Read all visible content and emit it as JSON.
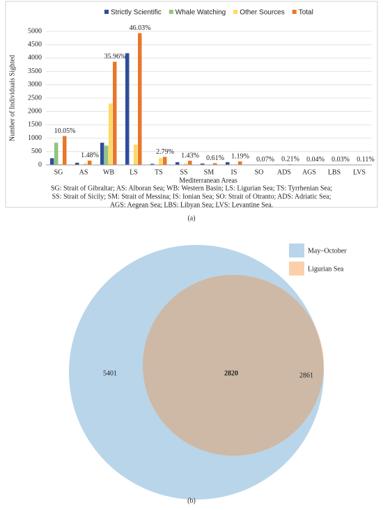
{
  "chart_data": [
    {
      "type": "bar",
      "y_label": "Number of Individuals Sighted",
      "x_label": "Mediterranean Areas",
      "categories": [
        "SG",
        "AS",
        "WB",
        "LS",
        "TS",
        "SS",
        "SM",
        "IS",
        "SO",
        "ADS",
        "AGS",
        "LBS",
        "LVS"
      ],
      "series": [
        {
          "name": "Strictly Scientific",
          "color": "#2f4d9c",
          "values": [
            250,
            80,
            830,
            4180,
            40,
            100,
            50,
            100,
            5,
            15,
            3,
            2,
            8
          ]
        },
        {
          "name": "Whale Watching",
          "color": "#93c47d",
          "values": [
            830,
            10,
            720,
            10,
            10,
            5,
            5,
            5,
            0,
            0,
            0,
            0,
            0
          ]
        },
        {
          "name": "Other Sources",
          "color": "#ffd966",
          "values": [
            30,
            60,
            2300,
            760,
            250,
            50,
            15,
            25,
            3,
            8,
            1,
            1,
            4
          ]
        },
        {
          "name": "Total",
          "color": "#e8772b",
          "values": [
            1080,
            160,
            3860,
            4930,
            300,
            155,
            65,
            130,
            8,
            23,
            4,
            3,
            12
          ]
        }
      ],
      "percent_labels": [
        "10.05%",
        "1.48%",
        "35.96%",
        "46.03%",
        "2.79%",
        "1.43%",
        "0.61%",
        "1.19%",
        "0.07%",
        "0.21%",
        "0.04%",
        "0.03%",
        "0.11%"
      ],
      "ylim": [
        0,
        5000
      ],
      "yticks": [
        0,
        500,
        1000,
        1500,
        2000,
        2500,
        3000,
        3500,
        4000,
        4500,
        5000
      ],
      "grid": true,
      "legend": "top",
      "caption": [
        "SG: Strait of Gibraltar; AS: Alboran Sea; WB: Western Basin; LS: Ligurian Sea; TS: Tyrrhenian Sea;",
        "SS: Strait of Sicily; SM: Strait of Messina; IS: Ionian Sea; SO: Strait of Otranto; ADS: Adriatic Sea;",
        "AGS: Aegean Sea; LBS: Libyan Sea; LVS: Levantine Sea."
      ],
      "panel": "(a)"
    },
    {
      "type": "venn",
      "sets": [
        {
          "name": "May–October",
          "color": "#b9d5e9"
        },
        {
          "name": "Ligurian Sea",
          "color": "#fbcfa9"
        }
      ],
      "values": [
        5401,
        2820,
        2861
      ],
      "panel": "(b)"
    }
  ]
}
